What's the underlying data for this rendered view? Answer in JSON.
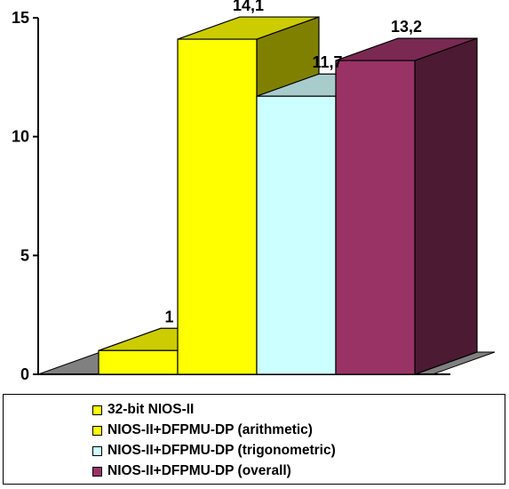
{
  "chart_data": {
    "type": "bar",
    "three_d": true,
    "ylim": [
      0,
      15
    ],
    "yticks": [
      0,
      5,
      10,
      15
    ],
    "ytick_labels": [
      "0",
      "5",
      "10",
      "15"
    ],
    "series": [
      {
        "name": "32-bit NIOS-II",
        "value": 1,
        "label": "1",
        "color": "#ffff00"
      },
      {
        "name": "NIOS-II+DFPMU-DP (arithmetic)",
        "value": 14.1,
        "label": "14,1",
        "color": "#ffff00"
      },
      {
        "name": "NIOS-II+DFPMU-DP (trigonometric)",
        "value": 11.7,
        "label": "11,7",
        "color": "#ccffff"
      },
      {
        "name": "NIOS-II+DFPMU-DP (overall)",
        "value": 13.2,
        "label": "13,2",
        "color": "#993366"
      }
    ],
    "side_colors": [
      "#808000",
      "#808000",
      "#99bbbb",
      "#4d1a33"
    ],
    "top_colors": [
      "#cccc00",
      "#cccc00",
      "#a8cccc",
      "#7a2952"
    ],
    "floor_color": "#808080",
    "legend_position": "bottom"
  }
}
